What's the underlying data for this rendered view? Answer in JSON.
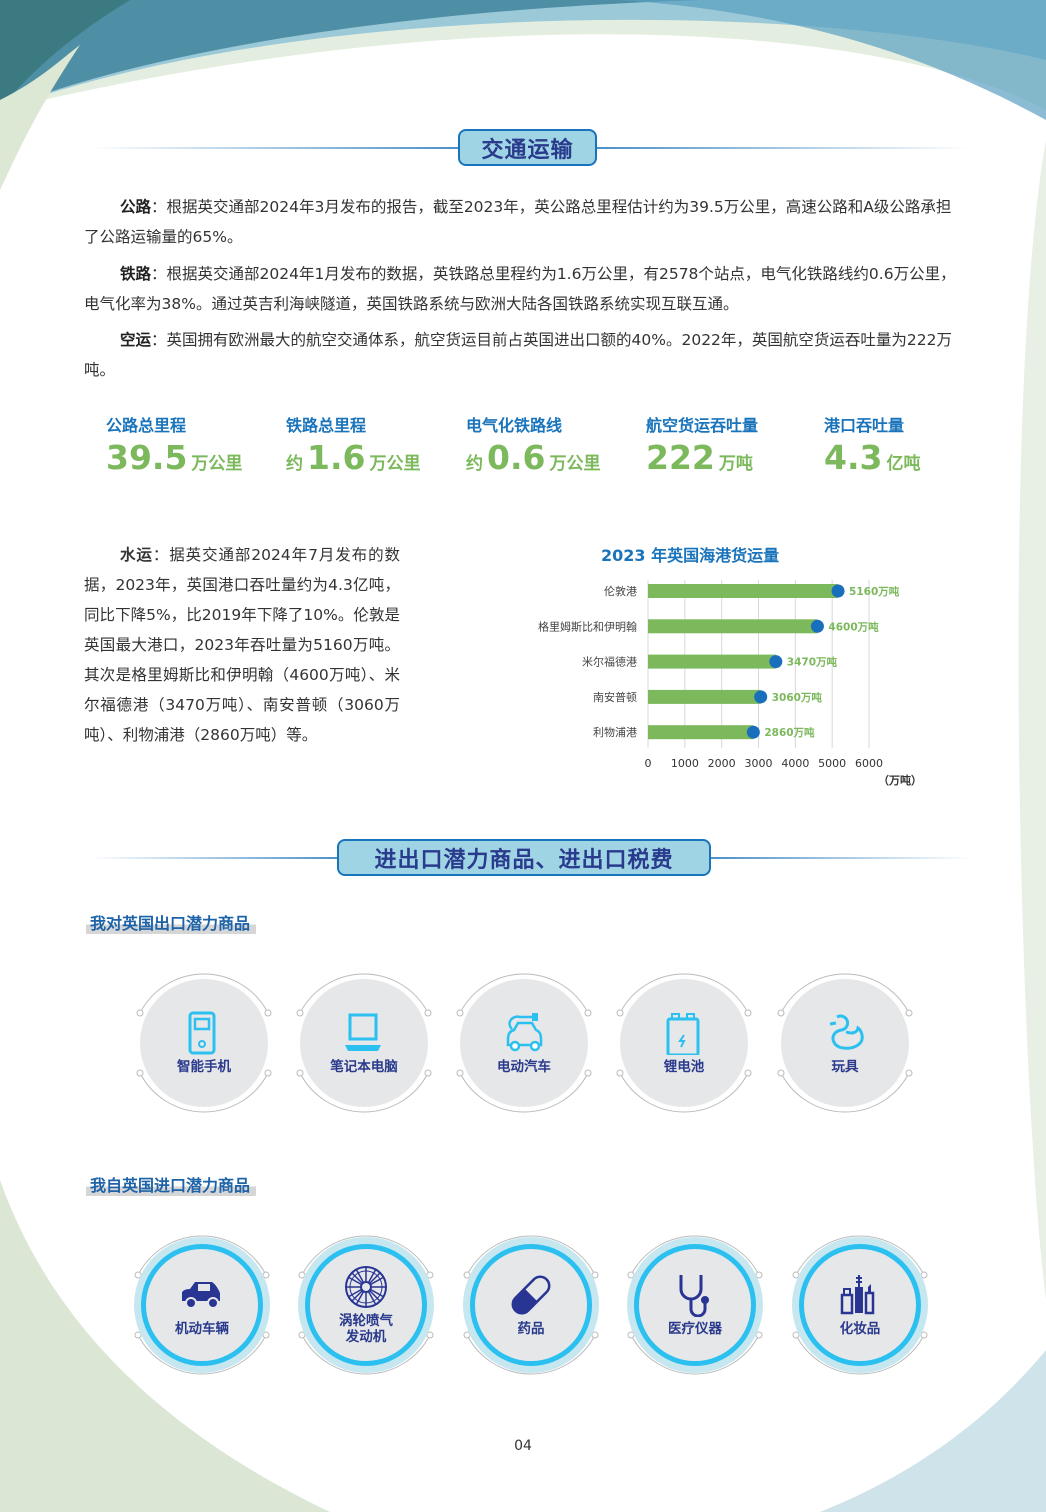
{
  "colors": {
    "accent_blue": "#1a74bb",
    "title_box": "#9ed4e4",
    "stat_green": "#7cb85c",
    "navy": "#2a3a8c",
    "icon_cyan": "#2bc0ef"
  },
  "section1": {
    "title": "交通运输"
  },
  "paragraphs": [
    {
      "label": "公路",
      "text": "：根据英交通部2024年3月发布的报告，截至2023年，英公路总里程估计约为39.5万公里，高速公路和A级公路承担了公路运输量的65%。"
    },
    {
      "label": "铁路",
      "text": "：根据英交通部2024年1月发布的数据，英铁路总里程约为1.6万公里，有2578个站点，电气化铁路线约0.6万公里，电气化率为38%。通过英吉利海峡隧道，英国铁路系统与欧洲大陆各国铁路系统实现互联互通。"
    },
    {
      "label": "空运",
      "text": "：英国拥有欧洲最大的航空交通体系，航空货运目前占英国进出口额的40%。2022年，英国航空货运吞吐量为222万吨。"
    }
  ],
  "stats": [
    {
      "label": "公路总里程",
      "prefix": "",
      "value": "39.5",
      "unit": "万公里"
    },
    {
      "label": "铁路总里程",
      "prefix": "约",
      "value": "1.6",
      "unit": "万公里"
    },
    {
      "label": "电气化铁路线",
      "prefix": "约",
      "value": "0.6",
      "unit": "万公里"
    },
    {
      "label": "航空货运吞吐量",
      "prefix": "",
      "value": "222",
      "unit": "万吨"
    },
    {
      "label": "港口吞吐量",
      "prefix": "",
      "value": "4.3",
      "unit": "亿吨"
    }
  ],
  "water": {
    "label": "水运",
    "text": "：据英交通部2024年7月发布的数据，2023年，英国港口吞吐量约为4.3亿吨，同比下降5%，比2019年下降了10%。伦敦是英国最大港口，2023年吞吐量为5160万吨。其次是格里姆斯比和伊明翰（4600万吨）、米尔福德港（3470万吨）、南安普顿（3060万吨）、利物浦港（2860万吨）等。"
  },
  "chart_data": {
    "type": "bar",
    "orientation": "horizontal",
    "title": "2023 年英国海港货运量",
    "categories": [
      "伦敦港",
      "格里姆斯比和伊明翰",
      "米尔福德港",
      "南安普顿",
      "利物浦港"
    ],
    "values": [
      5160,
      4600,
      3470,
      3060,
      2860
    ],
    "data_labels": [
      "5160万吨",
      "4600万吨",
      "3470万吨",
      "3060万吨",
      "2860万吨"
    ],
    "xticks": [
      "0",
      "1000",
      "2000",
      "3000",
      "4000",
      "5000",
      "6000"
    ],
    "xlim": [
      0,
      6000
    ],
    "xunit": "（万吨）",
    "grid": true,
    "bar_color": "#7cb85c",
    "marker_color": "#1a6fbd",
    "label_color": "#7cb85c"
  },
  "section2": {
    "title": "进出口潜力商品、进出口税费"
  },
  "export": {
    "title": "我对英国出口潜力商品",
    "items": [
      {
        "label": "智能手机",
        "icon": "smartphone-icon"
      },
      {
        "label": "笔记本电脑",
        "icon": "laptop-icon"
      },
      {
        "label": "电动汽车",
        "icon": "electric-car-icon"
      },
      {
        "label": "锂电池",
        "icon": "battery-icon"
      },
      {
        "label": "玩具",
        "icon": "duck-toy-icon"
      }
    ]
  },
  "import": {
    "title": "我自英国进口潜力商品",
    "items": [
      {
        "label": "机动车辆",
        "icon": "car-icon"
      },
      {
        "label": "涡轮喷气\n发动机",
        "icon": "turbine-icon"
      },
      {
        "label": "药品",
        "icon": "pill-icon"
      },
      {
        "label": "医疗仪器",
        "icon": "stethoscope-icon"
      },
      {
        "label": "化妆品",
        "icon": "cosmetics-icon"
      }
    ]
  },
  "page_number": "04"
}
